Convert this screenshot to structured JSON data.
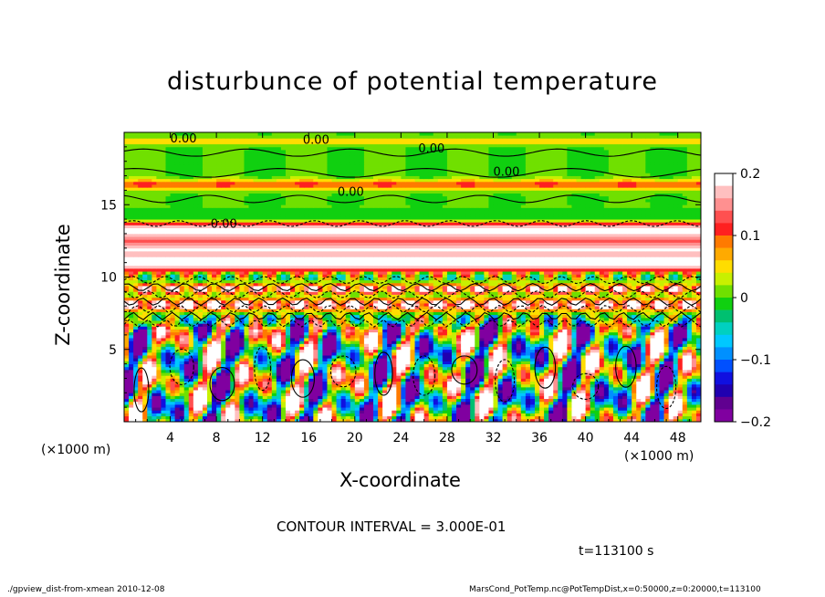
{
  "chart_data": {
    "type": "heatmap",
    "title": "disturbunce of potential temperature",
    "xlabel": "X-coordinate",
    "ylabel": "Z-coordinate",
    "x_unit": "(×1000 m)",
    "xlim": [
      0,
      50
    ],
    "ylim": [
      0,
      20
    ],
    "x_ticks": [
      4,
      8,
      12,
      16,
      20,
      24,
      28,
      32,
      36,
      40,
      44,
      48
    ],
    "y_ticks": [
      5,
      10,
      15
    ],
    "colorbar": {
      "range": [
        -0.2,
        0.2
      ],
      "tick_values": [
        0.2,
        0.1,
        0,
        -0.1,
        -0.2
      ],
      "tick_labels": [
        "0.2",
        "0.1",
        "0",
        "−0.1",
        "−0.2"
      ],
      "colors": [
        "#ffffff",
        "#ffc0c0",
        "#ff9090",
        "#ff5050",
        "#ff2020",
        "#ff7a00",
        "#ffaa00",
        "#ffdd00",
        "#c8f000",
        "#70e000",
        "#10d010",
        "#00c070",
        "#00d0c0",
        "#00c8ff",
        "#0090ff",
        "#0050ff",
        "#1010e0",
        "#2000b0",
        "#600090",
        "#8000a0"
      ]
    },
    "contour_labels": [
      "0.00",
      "0.00",
      "0.00",
      "0.00",
      "0.00",
      "0.00"
    ],
    "contour_interval_text": "CONTOUR INTERVAL = 3.000E-01",
    "time_text": "t=113100 s"
  },
  "footer": {
    "left": "./gpview_dist-from-xmean  2010-12-08",
    "right": "MarsCond_PotTemp.nc@PotTempDist,x=0:50000,z=0:20000,t=113100"
  }
}
